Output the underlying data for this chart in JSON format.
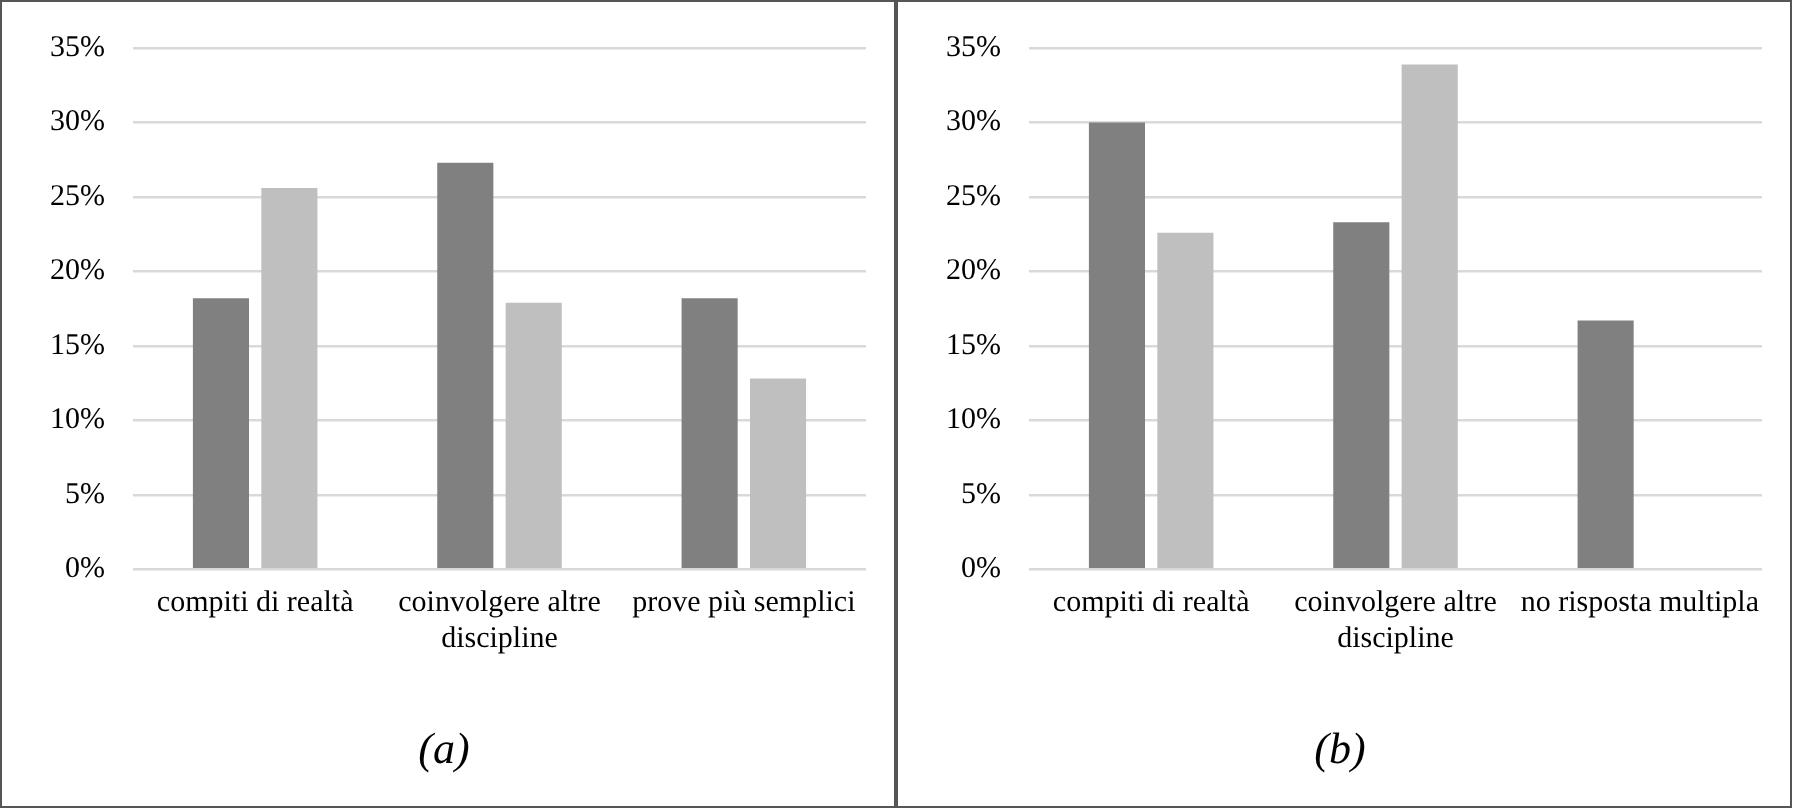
{
  "chart_data": [
    {
      "type": "bar",
      "title": "(a)",
      "categories": [
        "compiti di realtà",
        "coinvolgere altre discipline",
        "prove più semplici"
      ],
      "series": [
        {
          "color": "#808080",
          "values": [
            18.2,
            27.3,
            18.2
          ]
        },
        {
          "color": "#bfbfbf",
          "values": [
            25.6,
            17.9,
            12.8
          ]
        }
      ],
      "ylim": [
        0,
        35
      ],
      "yticks": [
        {
          "value": 0,
          "label": "0%"
        },
        {
          "value": 5,
          "label": "5%"
        },
        {
          "value": 10,
          "label": "10%"
        },
        {
          "value": 15,
          "label": "15%"
        },
        {
          "value": 20,
          "label": "20%"
        },
        {
          "value": 25,
          "label": "25%"
        },
        {
          "value": 30,
          "label": "30%"
        },
        {
          "value": 35,
          "label": "35%"
        }
      ],
      "grid": "y",
      "legend": false
    },
    {
      "type": "bar",
      "title": "(b)",
      "categories": [
        "compiti di realtà",
        "coinvolgere altre discipline",
        "no risposta multipla"
      ],
      "series": [
        {
          "color": "#808080",
          "values": [
            30,
            23.3,
            16.7
          ]
        },
        {
          "color": "#bfbfbf",
          "values": [
            22.6,
            33.9,
            null
          ]
        }
      ],
      "ylim": [
        0,
        35
      ],
      "yticks": [
        {
          "value": 0,
          "label": "0%"
        },
        {
          "value": 5,
          "label": "5%"
        },
        {
          "value": 10,
          "label": "10%"
        },
        {
          "value": 15,
          "label": "15%"
        },
        {
          "value": 20,
          "label": "20%"
        },
        {
          "value": 25,
          "label": "25%"
        },
        {
          "value": 30,
          "label": "30%"
        },
        {
          "value": 35,
          "label": "35%"
        }
      ],
      "grid": "y",
      "legend": false
    }
  ]
}
